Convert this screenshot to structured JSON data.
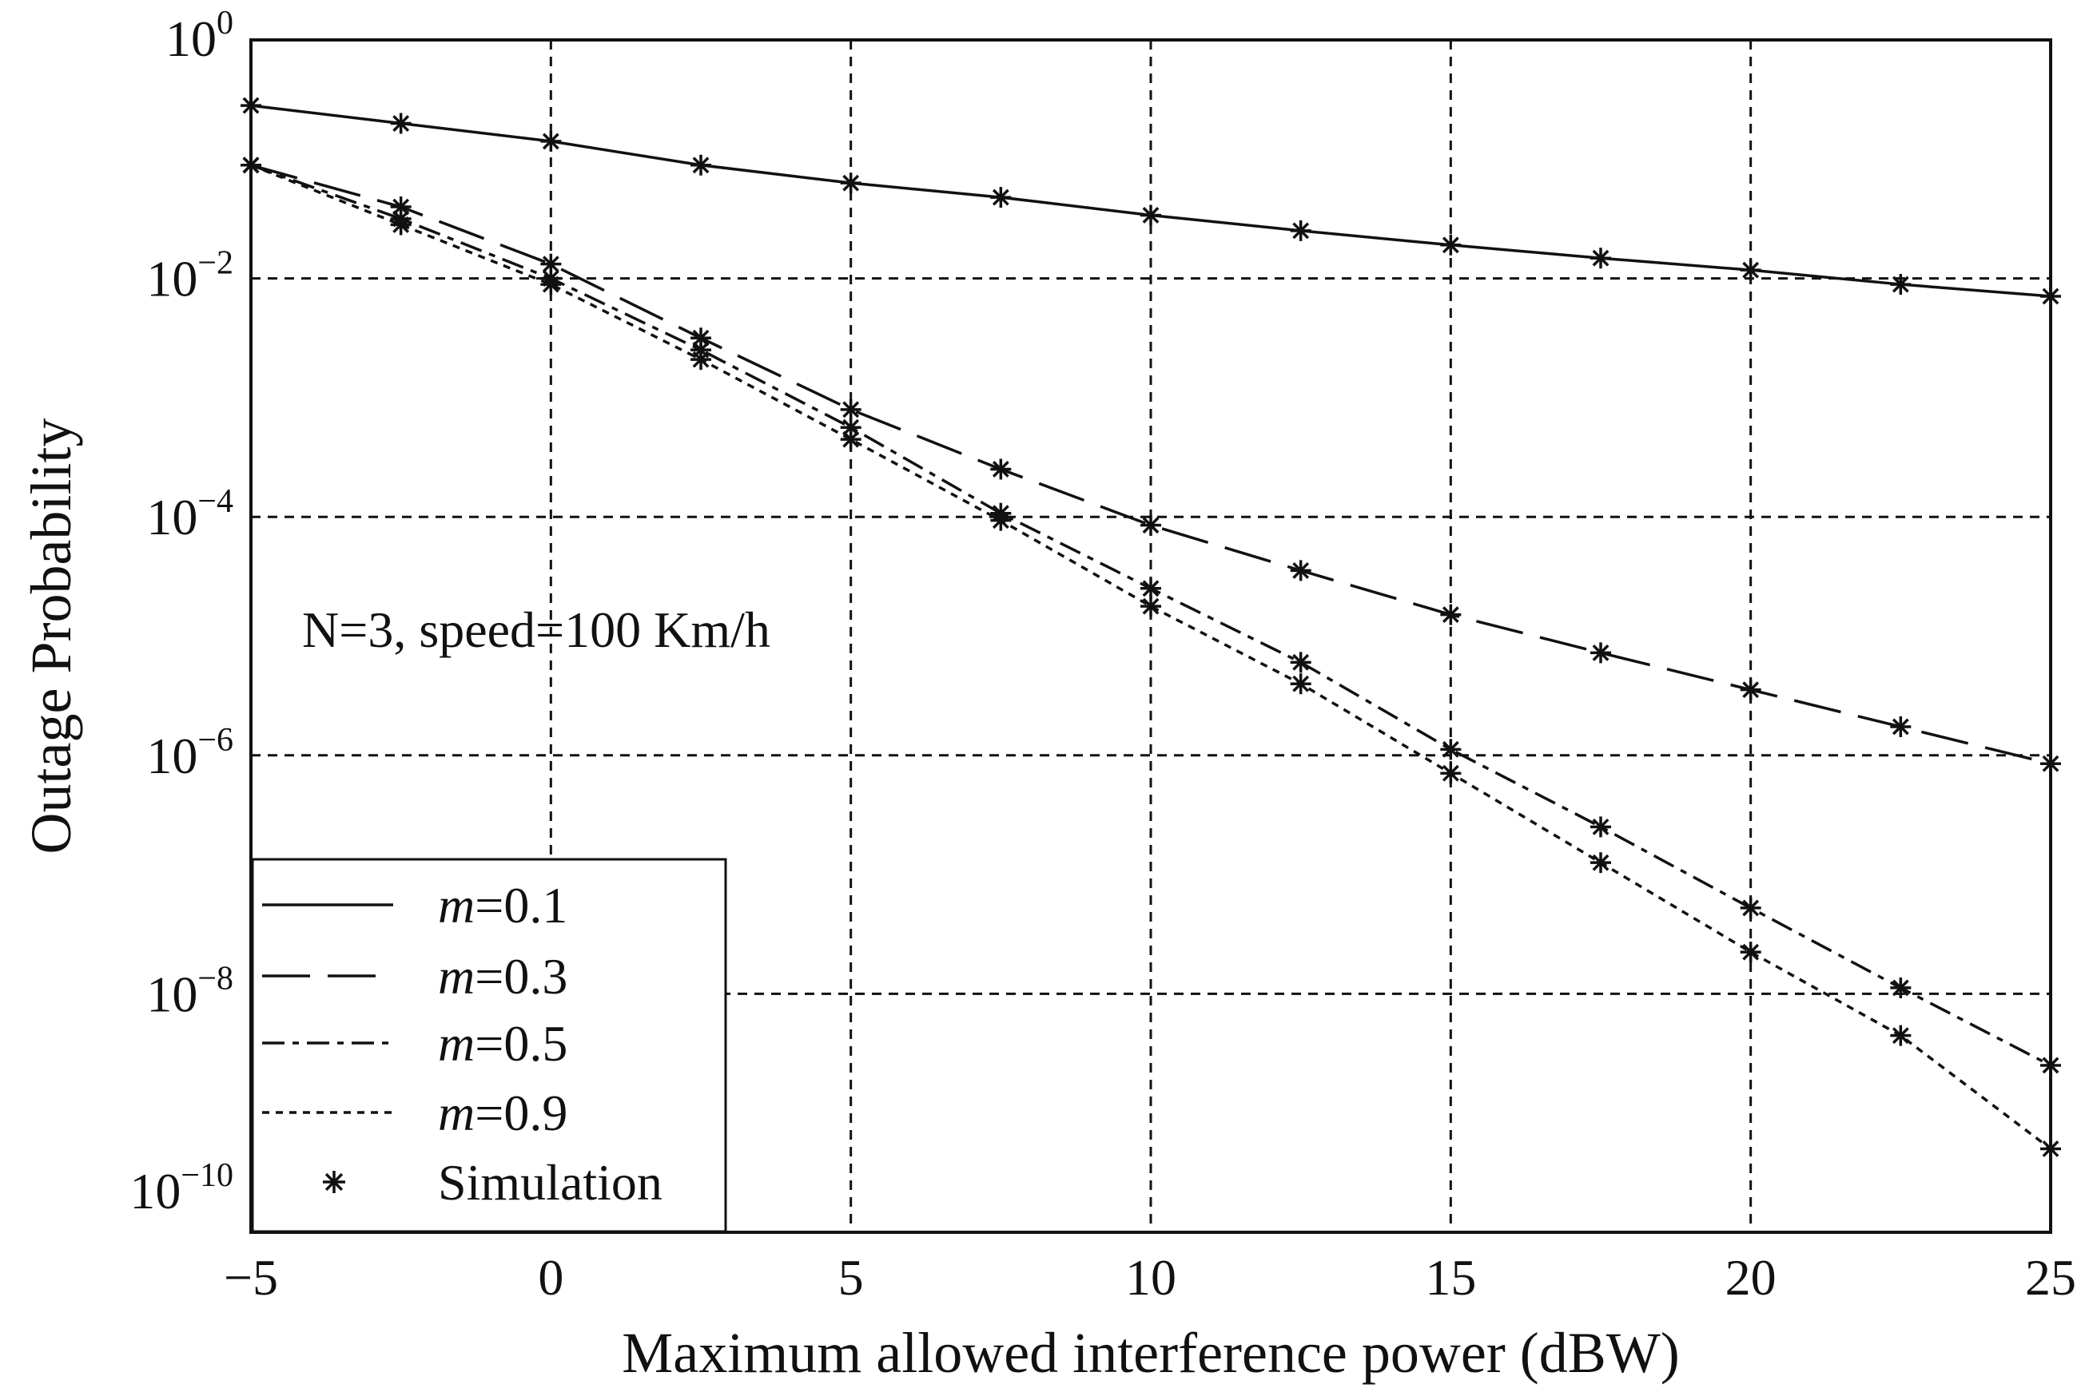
{
  "chart_data": {
    "type": "line",
    "title": "",
    "xlabel": "Maximum allowed interference power (dBW)",
    "ylabel": "Outage Probability",
    "y_scale": "log",
    "xlim": [
      -5,
      25
    ],
    "ylim_exp": [
      -10,
      0
    ],
    "x_ticks": [
      -5,
      0,
      5,
      10,
      15,
      20,
      25
    ],
    "x_tick_labels": [
      "−5",
      "0",
      "5",
      "10",
      "15",
      "20",
      "25"
    ],
    "y_ticks_exp": [
      0,
      -2,
      -4,
      -6,
      -8,
      -10
    ],
    "y_tick_labels": [
      {
        "base": "10",
        "exp": "0"
      },
      {
        "base": "10",
        "exp": "−2"
      },
      {
        "base": "10",
        "exp": "−4"
      },
      {
        "base": "10",
        "exp": "−6"
      },
      {
        "base": "10",
        "exp": "−8"
      },
      {
        "base": "10",
        "exp": "−10"
      }
    ],
    "grid": true,
    "annotation": "N=3, speed=100 Km/h",
    "legend_position": "bottom-left",
    "x": [
      -5,
      -2.5,
      0,
      2.5,
      5,
      7.5,
      10,
      12.5,
      15,
      17.5,
      20,
      22.5,
      25
    ],
    "series": [
      {
        "name": "m=0.1",
        "m_label": "m",
        "value_label": "=0.1",
        "style": "solid",
        "log10_values": [
          -0.55,
          -0.7,
          -0.85,
          -1.05,
          -1.2,
          -1.32,
          -1.47,
          -1.6,
          -1.72,
          -1.83,
          -1.93,
          -2.05,
          -2.15
        ]
      },
      {
        "name": "m=0.3",
        "m_label": "m",
        "value_label": "=0.3",
        "style": "longdash",
        "log10_values": [
          -1.05,
          -1.4,
          -1.88,
          -2.5,
          -3.1,
          -3.6,
          -4.07,
          -4.45,
          -4.82,
          -5.14,
          -5.45,
          -5.76,
          -6.07
        ]
      },
      {
        "name": "m=0.5",
        "m_label": "m",
        "value_label": "=0.5",
        "style": "dashdot",
        "log10_values": [
          -1.05,
          -1.5,
          -2.0,
          -2.6,
          -3.25,
          -3.97,
          -4.6,
          -5.22,
          -5.95,
          -6.6,
          -7.28,
          -7.95,
          -8.6
        ]
      },
      {
        "name": "m=0.9",
        "m_label": "m",
        "value_label": "=0.9",
        "style": "dotted",
        "log10_values": [
          -1.05,
          -1.55,
          -2.05,
          -2.68,
          -3.35,
          -4.03,
          -4.75,
          -5.4,
          -6.15,
          -6.9,
          -7.65,
          -8.35,
          -9.3
        ]
      }
    ],
    "simulation": {
      "name": "Simulation",
      "marker": "*",
      "points": [
        {
          "series": "m=0.1",
          "x_index": [
            0,
            1,
            2,
            3,
            4,
            5,
            6,
            7,
            8,
            9,
            10,
            11,
            12
          ]
        },
        {
          "series": "m=0.3",
          "x_index": [
            0,
            1,
            2,
            3,
            4,
            5,
            6,
            7,
            8,
            9,
            10,
            11,
            12
          ]
        },
        {
          "series": "m=0.5",
          "x_index": [
            0,
            1,
            2,
            3,
            4,
            5,
            6,
            7,
            8,
            9,
            10,
            11,
            12
          ]
        },
        {
          "series": "m=0.9",
          "x_index": [
            0,
            1,
            2,
            3,
            4,
            5,
            6,
            7,
            8,
            9,
            10,
            11,
            12
          ]
        }
      ]
    },
    "colors": {
      "line": "#111111",
      "grid": "#111111",
      "background": "#ffffff"
    }
  }
}
